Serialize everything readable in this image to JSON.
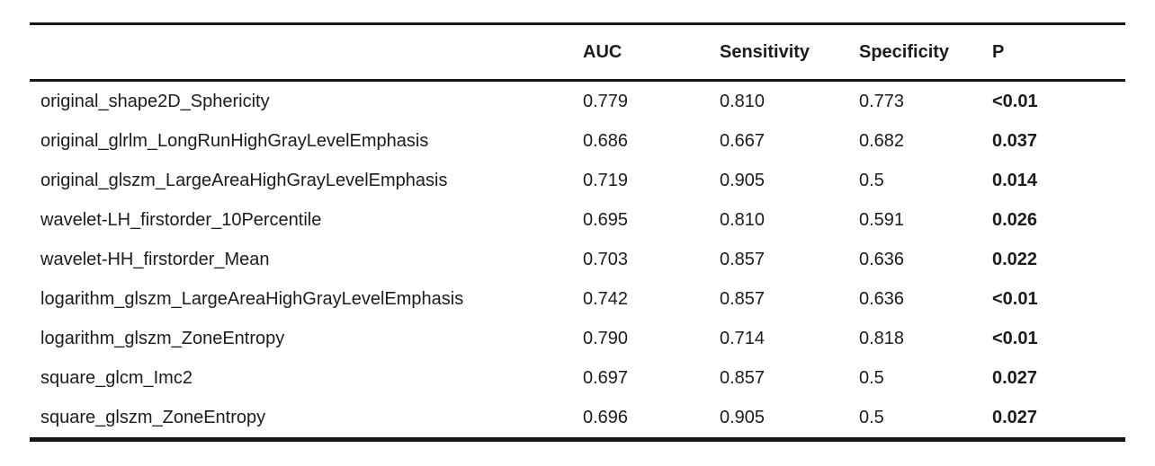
{
  "table": {
    "headers": {
      "feature": "",
      "auc": "AUC",
      "sensitivity": "Sensitivity",
      "specificity": "Specificity",
      "p": "P"
    },
    "rows": [
      {
        "feature": "original_shape2D_Sphericity",
        "auc": "0.779",
        "sensitivity": "0.810",
        "specificity": "0.773",
        "p": "<0.01"
      },
      {
        "feature": "original_glrlm_LongRunHighGrayLevelEmphasis",
        "auc": "0.686",
        "sensitivity": "0.667",
        "specificity": "0.682",
        "p": "0.037"
      },
      {
        "feature": "original_glszm_LargeAreaHighGrayLevelEmphasis",
        "auc": "0.719",
        "sensitivity": "0.905",
        "specificity": "0.5",
        "p": "0.014"
      },
      {
        "feature": "wavelet-LH_firstorder_10Percentile",
        "auc": "0.695",
        "sensitivity": "0.810",
        "specificity": "0.591",
        "p": "0.026"
      },
      {
        "feature": "wavelet-HH_firstorder_Mean",
        "auc": "0.703",
        "sensitivity": "0.857",
        "specificity": "0.636",
        "p": "0.022"
      },
      {
        "feature": "logarithm_glszm_LargeAreaHighGrayLevelEmphasis",
        "auc": "0.742",
        "sensitivity": "0.857",
        "specificity": "0.636",
        "p": "<0.01"
      },
      {
        "feature": "logarithm_glszm_ZoneEntropy",
        "auc": "0.790",
        "sensitivity": "0.714",
        "specificity": "0.818",
        "p": "<0.01"
      },
      {
        "feature": "square_glcm_Imc2",
        "auc": "0.697",
        "sensitivity": "0.857",
        "specificity": "0.5",
        "p": "0.027"
      },
      {
        "feature": "square_glszm_ZoneEntropy",
        "auc": "0.696",
        "sensitivity": "0.905",
        "specificity": "0.5",
        "p": "0.027"
      }
    ],
    "colors": {
      "text": "#1c1c1c",
      "rule": "#161616",
      "background": "#ffffff"
    }
  }
}
